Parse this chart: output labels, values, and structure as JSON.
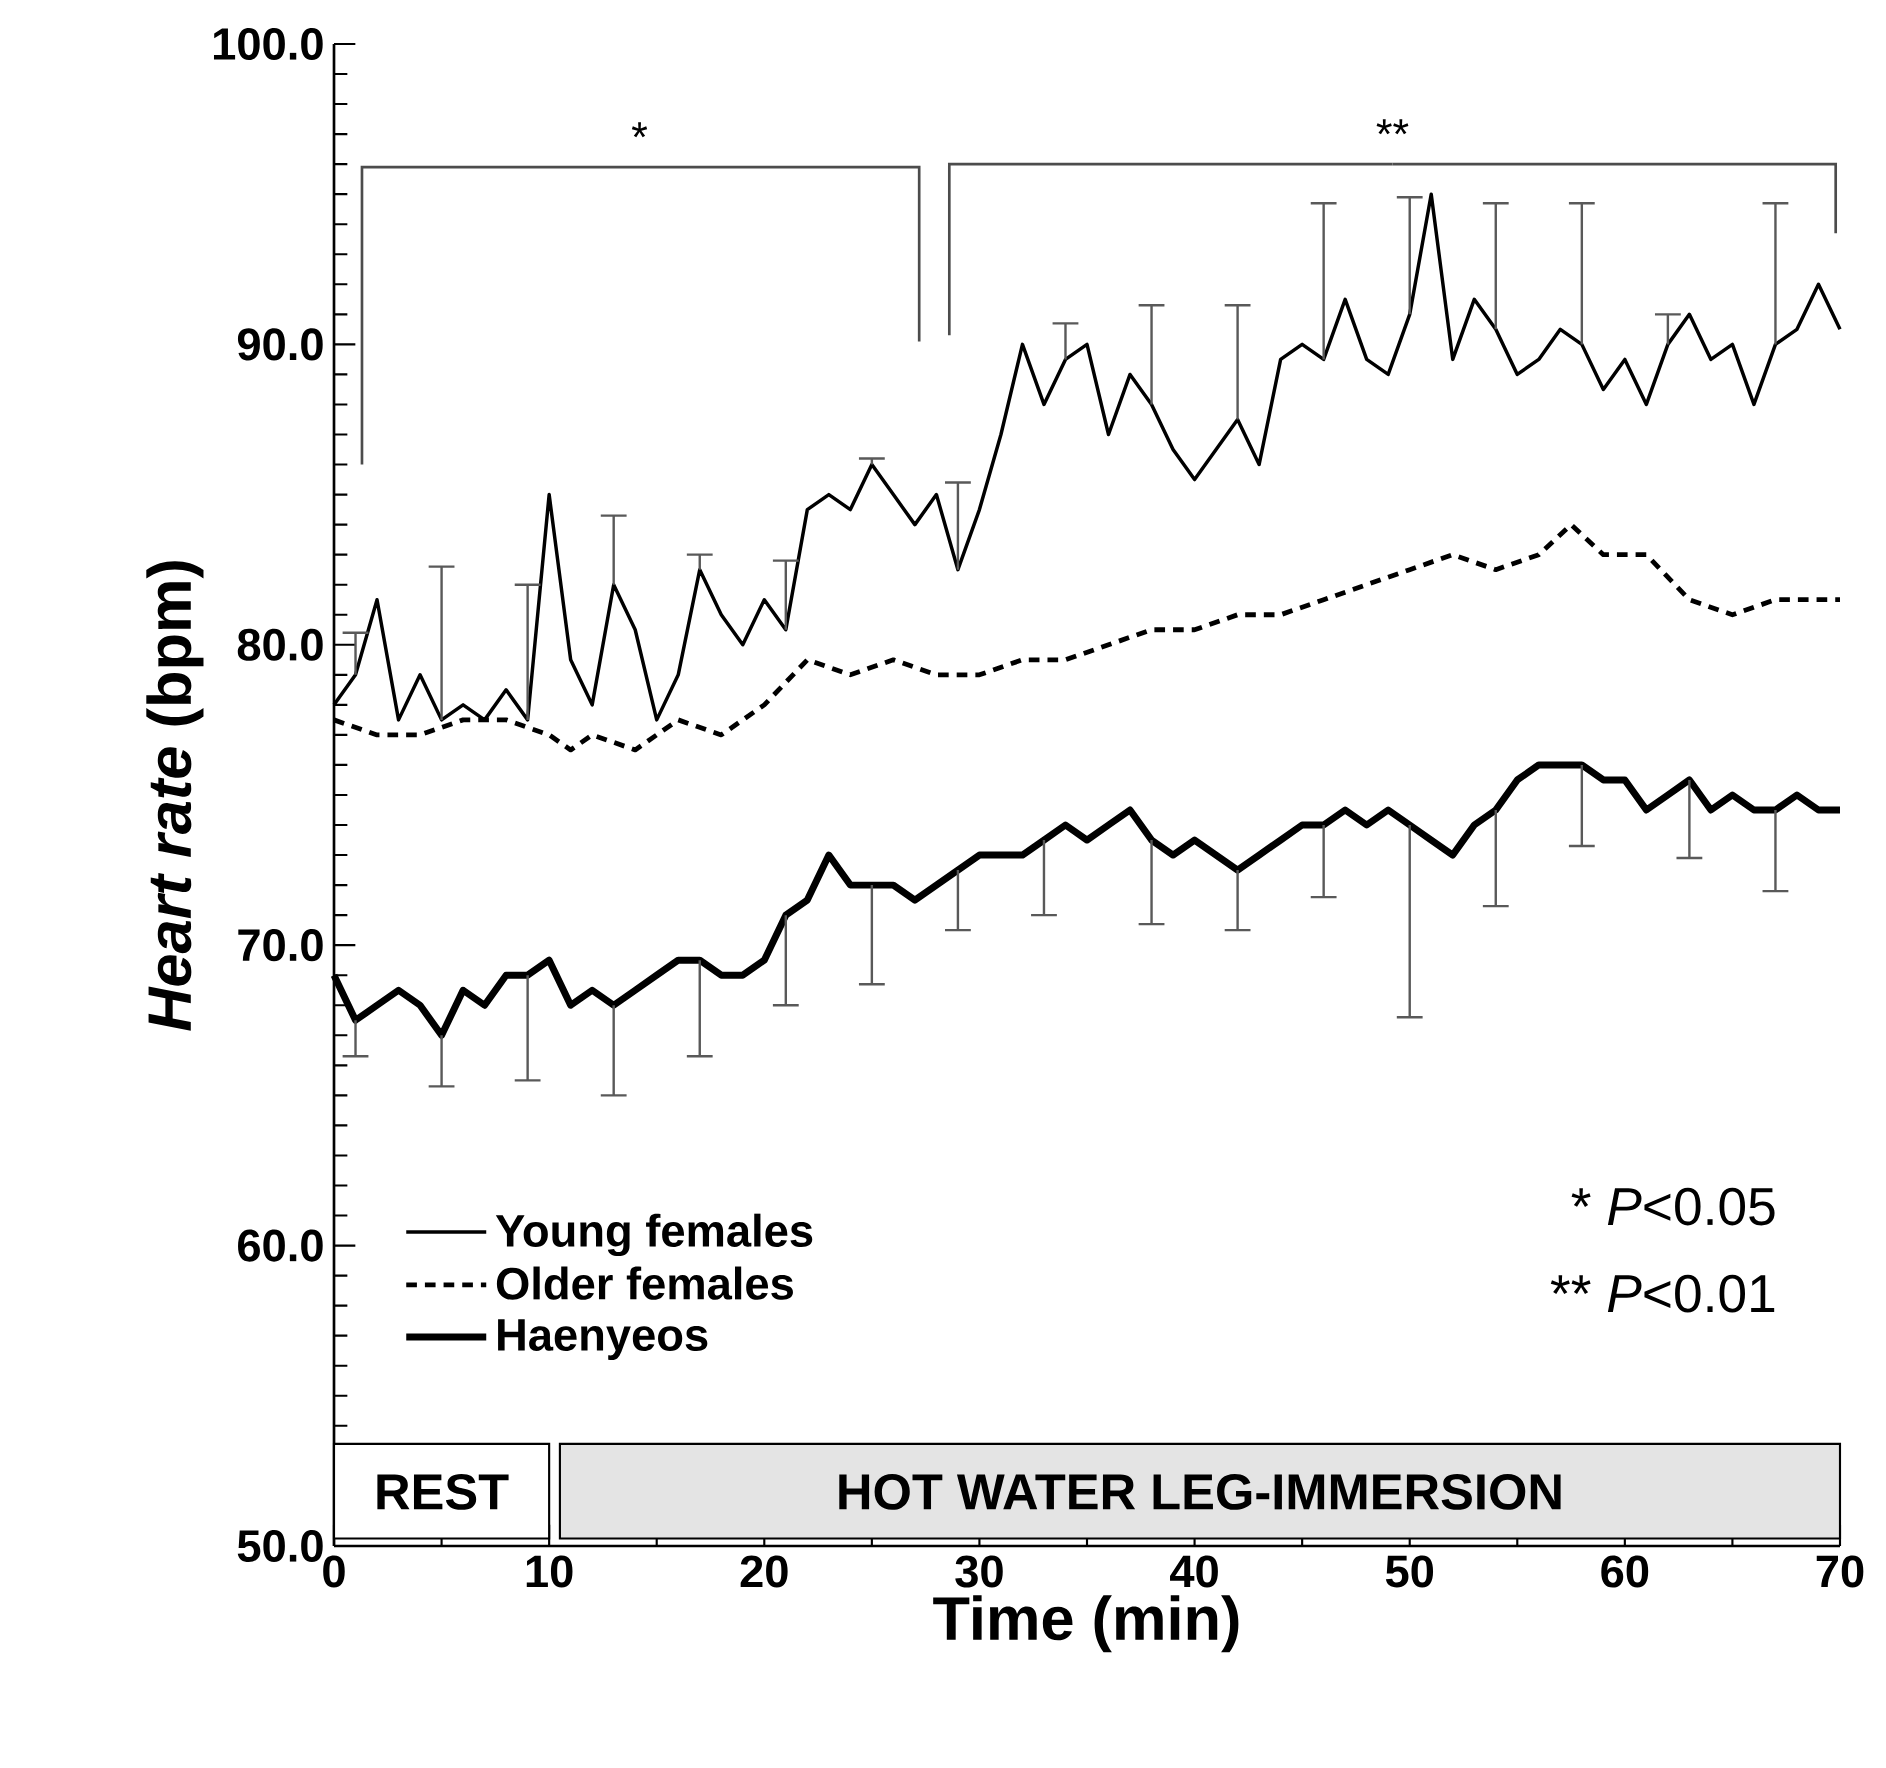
{
  "chart_data": {
    "type": "line",
    "xlabel": "Time (min)",
    "ylabel": "*Heart rate* (bpm)",
    "xlim": [
      0,
      70
    ],
    "xticks": [
      0,
      10,
      20,
      30,
      40,
      50,
      60,
      70
    ],
    "ylim": [
      50,
      100
    ],
    "yticks": [
      {
        "value": 50,
        "label": "50.0"
      },
      {
        "value": 60,
        "label": "60.0"
      },
      {
        "value": 70,
        "label": "70.0"
      },
      {
        "value": 80,
        "label": "80.0"
      },
      {
        "value": 90,
        "label": "90.0"
      },
      {
        "value": 100,
        "label": "100.0"
      }
    ],
    "legend": "bottom left",
    "series": [
      {
        "name": "Young females",
        "color": "#000000",
        "line_style": "solid",
        "x": [
          0,
          1,
          2,
          3,
          4,
          5,
          6,
          7,
          8,
          9,
          10,
          11,
          12,
          13,
          14,
          15,
          16,
          17,
          18,
          19,
          20,
          21,
          22,
          23,
          24,
          25,
          26,
          27,
          28,
          29,
          30,
          31,
          32,
          33,
          34,
          35,
          36,
          37,
          38,
          39,
          40,
          41,
          42,
          43,
          44,
          45,
          46,
          47,
          48,
          49,
          50,
          51,
          52,
          53,
          54,
          55,
          56,
          57,
          58,
          59,
          60,
          61,
          62,
          63,
          64,
          65,
          66,
          67,
          68,
          69,
          70
        ],
        "values": [
          78,
          79,
          81.5,
          77.5,
          79,
          77.5,
          78,
          77.5,
          78.5,
          77.5,
          85,
          79.5,
          78,
          82,
          80.5,
          77.5,
          79,
          82.5,
          81,
          80,
          81.5,
          80.5,
          84.5,
          85,
          84.5,
          86,
          85,
          84,
          85,
          82.5,
          84.5,
          87,
          90,
          88,
          89.5,
          90,
          87,
          89,
          88,
          86.5,
          85.5,
          86.5,
          87.5,
          86,
          89.5,
          90,
          89.5,
          91.5,
          89.5,
          89,
          91,
          95,
          89.5,
          91.5,
          90.5,
          89,
          89.5,
          90.5,
          90,
          88.5,
          89.5,
          88,
          90,
          91,
          89.5,
          90,
          88,
          90,
          90.5,
          92,
          90.5
        ],
        "errors": [
          null,
          [
            79,
            80.4
          ],
          null,
          null,
          null,
          [
            77.5,
            82.6
          ],
          null,
          null,
          null,
          [
            77.5,
            82
          ],
          null,
          null,
          null,
          [
            82,
            84.3
          ],
          null,
          null,
          null,
          [
            82.5,
            83
          ],
          null,
          null,
          null,
          [
            80.5,
            82.8
          ],
          null,
          null,
          null,
          [
            86,
            86.2
          ],
          null,
          null,
          null,
          [
            82.5,
            85.4
          ],
          null,
          null,
          null,
          null,
          [
            89.5,
            90.7
          ],
          null,
          null,
          null,
          [
            88,
            91.3
          ],
          null,
          null,
          null,
          [
            87.5,
            91.3
          ],
          null,
          null,
          null,
          [
            89.5,
            94.7
          ],
          null,
          null,
          null,
          [
            91,
            94.9
          ],
          null,
          null,
          null,
          [
            90.5,
            94.7
          ],
          null,
          null,
          null,
          [
            90,
            94.7
          ],
          null,
          null,
          null,
          [
            90,
            91
          ],
          null,
          null,
          null,
          null,
          [
            90,
            94.7
          ],
          null,
          null,
          null
        ]
      },
      {
        "name": "Older females",
        "color": "#000000",
        "line_style": "dashed",
        "x": [
          0,
          2,
          4,
          6,
          8,
          10,
          11,
          12,
          14,
          16,
          18,
          20,
          22,
          24,
          26,
          28,
          30,
          32,
          34,
          36,
          38,
          40,
          42,
          44,
          46,
          48,
          50,
          52,
          54,
          56,
          57.5,
          59,
          61,
          63,
          65,
          67,
          69,
          70
        ],
        "values": [
          77.5,
          77,
          77,
          77.5,
          77.5,
          77,
          76.5,
          77,
          76.5,
          77.5,
          77,
          78,
          79.5,
          79,
          79.5,
          79,
          79,
          79.5,
          79.5,
          80,
          80.5,
          80.5,
          81,
          81,
          81.5,
          82,
          82.5,
          83,
          82.5,
          83,
          84,
          83,
          83,
          81.5,
          81,
          81.5,
          81.5,
          81.5
        ]
      },
      {
        "name": "Haenyeos",
        "color": "#000000",
        "line_style": "solid",
        "x": [
          0,
          1,
          2,
          3,
          4,
          5,
          6,
          7,
          8,
          9,
          10,
          11,
          12,
          13,
          14,
          15,
          16,
          17,
          18,
          19,
          20,
          21,
          22,
          23,
          24,
          25,
          26,
          27,
          28,
          29,
          30,
          31,
          32,
          33,
          34,
          35,
          36,
          37,
          38,
          39,
          40,
          41,
          42,
          43,
          44,
          45,
          46,
          47,
          48,
          49,
          50,
          51,
          52,
          53,
          54,
          55,
          56,
          57,
          58,
          59,
          60,
          61,
          62,
          63,
          64,
          65,
          66,
          67,
          68,
          69,
          70
        ],
        "values": [
          69,
          67.5,
          68,
          68.5,
          68,
          67,
          68.5,
          68,
          69,
          69,
          69.5,
          68,
          68.5,
          68,
          68.5,
          69,
          69.5,
          69.5,
          69,
          69,
          69.5,
          71,
          71.5,
          73,
          72,
          72,
          72,
          71.5,
          72,
          72.5,
          73,
          73,
          73,
          73.5,
          74,
          73.5,
          74,
          74.5,
          73.5,
          73,
          73.5,
          73,
          72.5,
          73,
          73.5,
          74,
          74,
          74.5,
          74,
          74.5,
          74,
          73.5,
          73,
          74,
          74.5,
          75.5,
          76,
          76,
          76,
          75.5,
          75.5,
          74.5,
          75,
          75.5,
          74.5,
          75,
          74.5,
          74.5,
          75,
          74.5,
          74.5
        ],
        "errors": [
          null,
          [
            66.3,
            67.5
          ],
          null,
          null,
          null,
          [
            65.3,
            67
          ],
          null,
          null,
          null,
          [
            65.5,
            69
          ],
          null,
          null,
          null,
          [
            65,
            68
          ],
          null,
          null,
          null,
          [
            66.3,
            69.5
          ],
          null,
          null,
          null,
          [
            68,
            71
          ],
          null,
          null,
          null,
          [
            68.7,
            72
          ],
          null,
          null,
          null,
          [
            70.5,
            72.5
          ],
          null,
          null,
          null,
          [
            71,
            73.5
          ],
          null,
          null,
          null,
          null,
          [
            70.7,
            73.5
          ],
          null,
          null,
          null,
          [
            70.5,
            72.5
          ],
          null,
          null,
          null,
          [
            71.6,
            74
          ],
          null,
          null,
          null,
          [
            67.6,
            74
          ],
          null,
          null,
          null,
          [
            71.3,
            74.5
          ],
          null,
          null,
          null,
          [
            73.3,
            76
          ],
          null,
          null,
          null,
          null,
          [
            72.9,
            75.5
          ],
          null,
          null,
          null,
          [
            71.8,
            74.5
          ],
          null,
          null,
          null
        ]
      }
    ],
    "bands": [
      {
        "axis": "x",
        "from": 0,
        "to": 10,
        "label": "REST",
        "color": "#ffffff"
      },
      {
        "axis": "x",
        "from": 10.5,
        "to": 70,
        "label": "HOT WATER LEG-IMMERSION",
        "color": "#e4e4e4"
      }
    ],
    "annotations": [
      "*",
      "**",
      "* *P*<0.05",
      "** *P*<0.01"
    ]
  }
}
